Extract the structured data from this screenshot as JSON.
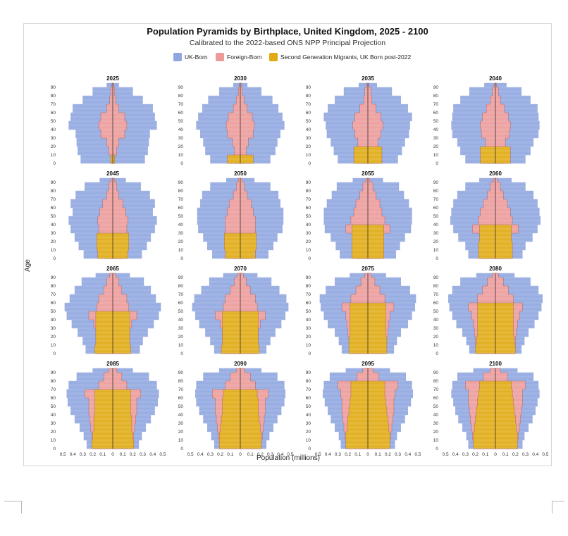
{
  "chart_data": {
    "type": "pyramid",
    "title": "Population Pyramids by Birthplace, United Kingdom, 2025 - 2100",
    "subtitle": "Calibrated to the 2022-based ONS NPP Principal Projection",
    "xlabel": "Population (millions)",
    "ylabel": "Age",
    "legend_position": "top",
    "series": [
      {
        "name": "UK-Born",
        "color": "#8fa6e0"
      },
      {
        "name": "Foreign-Born",
        "color": "#ec9a9a"
      },
      {
        "name": "Second Generation Migrants, UK Born post-2022",
        "color": "#e0aa12"
      }
    ],
    "x_ticks": [
      "0.5",
      "0.4",
      "0.3",
      "0.2",
      "0.1",
      "0",
      "0.1",
      "0.2",
      "0.3",
      "0.4",
      "0.5"
    ],
    "y_ticks": [
      "0",
      "10",
      "20",
      "30",
      "40",
      "50",
      "60",
      "70",
      "80",
      "90"
    ],
    "xlim": [
      -0.55,
      0.55
    ],
    "ylim": [
      0,
      95
    ],
    "ages": [
      0,
      10,
      20,
      30,
      40,
      50,
      60,
      70,
      80,
      90,
      95
    ],
    "panels": [
      {
        "year": "2025",
        "total": [
          0.32,
          0.35,
          0.36,
          0.37,
          0.44,
          0.42,
          0.4,
          0.3,
          0.2,
          0.06,
          0.02
        ],
        "foreign": [
          0.02,
          0.04,
          0.06,
          0.12,
          0.14,
          0.12,
          0.06,
          0.03,
          0.02,
          0.01,
          0.0
        ],
        "second": [
          0.02,
          0.0,
          0.0,
          0.0,
          0.0,
          0.0,
          0.0,
          0.0,
          0.0,
          0.0,
          0.0
        ]
      },
      {
        "year": "2030",
        "total": [
          0.3,
          0.35,
          0.37,
          0.4,
          0.44,
          0.42,
          0.38,
          0.32,
          0.21,
          0.07,
          0.02
        ],
        "foreign": [
          0.05,
          0.06,
          0.08,
          0.13,
          0.14,
          0.12,
          0.07,
          0.04,
          0.02,
          0.01,
          0.0
        ],
        "second": [
          0.13,
          0.0,
          0.0,
          0.0,
          0.0,
          0.0,
          0.0,
          0.0,
          0.0,
          0.0,
          0.0
        ]
      },
      {
        "year": "2035",
        "total": [
          0.3,
          0.34,
          0.37,
          0.41,
          0.42,
          0.44,
          0.4,
          0.33,
          0.24,
          0.09,
          0.02
        ],
        "foreign": [
          0.07,
          0.07,
          0.1,
          0.13,
          0.15,
          0.13,
          0.08,
          0.04,
          0.03,
          0.01,
          0.0
        ],
        "second": [
          0.14,
          0.14,
          0.0,
          0.0,
          0.0,
          0.0,
          0.0,
          0.0,
          0.0,
          0.0,
          0.0
        ]
      },
      {
        "year": "2040",
        "total": [
          0.3,
          0.35,
          0.38,
          0.43,
          0.44,
          0.43,
          0.42,
          0.35,
          0.26,
          0.11,
          0.03
        ],
        "foreign": [
          0.08,
          0.09,
          0.1,
          0.14,
          0.15,
          0.13,
          0.09,
          0.05,
          0.03,
          0.01,
          0.0
        ],
        "second": [
          0.15,
          0.15,
          0.0,
          0.0,
          0.0,
          0.0,
          0.0,
          0.0,
          0.0,
          0.0,
          0.0
        ]
      },
      {
        "year": "2045",
        "total": [
          0.29,
          0.34,
          0.38,
          0.42,
          0.44,
          0.4,
          0.42,
          0.37,
          0.28,
          0.13,
          0.04
        ],
        "foreign": [
          0.09,
          0.1,
          0.13,
          0.14,
          0.15,
          0.13,
          0.1,
          0.06,
          0.04,
          0.02,
          0.0
        ],
        "second": [
          0.15,
          0.16,
          0.16,
          0.0,
          0.0,
          0.0,
          0.0,
          0.0,
          0.0,
          0.0,
          0.0
        ]
      },
      {
        "year": "2050",
        "total": [
          0.28,
          0.33,
          0.37,
          0.42,
          0.43,
          0.43,
          0.4,
          0.38,
          0.3,
          0.14,
          0.04
        ],
        "foreign": [
          0.1,
          0.11,
          0.16,
          0.15,
          0.15,
          0.13,
          0.11,
          0.07,
          0.04,
          0.02,
          0.0
        ],
        "second": [
          0.15,
          0.16,
          0.16,
          0.0,
          0.0,
          0.0,
          0.0,
          0.0,
          0.0,
          0.0,
          0.0
        ]
      },
      {
        "year": "2055",
        "total": [
          0.28,
          0.32,
          0.37,
          0.43,
          0.44,
          0.44,
          0.41,
          0.36,
          0.31,
          0.15,
          0.05
        ],
        "foreign": [
          0.12,
          0.13,
          0.15,
          0.22,
          0.17,
          0.14,
          0.12,
          0.08,
          0.05,
          0.02,
          0.0
        ],
        "second": [
          0.16,
          0.16,
          0.16,
          0.16,
          0.0,
          0.0,
          0.0,
          0.0,
          0.0,
          0.0,
          0.0
        ]
      },
      {
        "year": "2060",
        "total": [
          0.27,
          0.3,
          0.37,
          0.42,
          0.45,
          0.44,
          0.42,
          0.38,
          0.3,
          0.16,
          0.05
        ],
        "foreign": [
          0.14,
          0.15,
          0.16,
          0.23,
          0.17,
          0.15,
          0.12,
          0.08,
          0.05,
          0.02,
          0.0
        ],
        "second": [
          0.17,
          0.17,
          0.16,
          0.16,
          0.0,
          0.0,
          0.0,
          0.0,
          0.0,
          0.0,
          0.0
        ]
      },
      {
        "year": "2065",
        "total": [
          0.27,
          0.3,
          0.35,
          0.41,
          0.46,
          0.48,
          0.43,
          0.38,
          0.31,
          0.17,
          0.06
        ],
        "foreign": [
          0.16,
          0.16,
          0.17,
          0.19,
          0.24,
          0.16,
          0.14,
          0.09,
          0.06,
          0.03,
          0.0
        ],
        "second": [
          0.18,
          0.17,
          0.17,
          0.17,
          0.17,
          0.0,
          0.0,
          0.0,
          0.0,
          0.0,
          0.0
        ]
      },
      {
        "year": "2070",
        "total": [
          0.26,
          0.3,
          0.35,
          0.41,
          0.45,
          0.48,
          0.46,
          0.39,
          0.31,
          0.17,
          0.07
        ],
        "foreign": [
          0.17,
          0.18,
          0.18,
          0.2,
          0.25,
          0.17,
          0.15,
          0.1,
          0.06,
          0.03,
          0.0
        ],
        "second": [
          0.19,
          0.18,
          0.18,
          0.18,
          0.18,
          0.0,
          0.0,
          0.0,
          0.0,
          0.0,
          0.0
        ]
      },
      {
        "year": "2075",
        "total": [
          0.26,
          0.29,
          0.33,
          0.4,
          0.44,
          0.47,
          0.48,
          0.42,
          0.33,
          0.18,
          0.07
        ],
        "foreign": [
          0.18,
          0.19,
          0.2,
          0.21,
          0.22,
          0.26,
          0.17,
          0.12,
          0.07,
          0.03,
          0.0
        ],
        "second": [
          0.19,
          0.19,
          0.18,
          0.18,
          0.18,
          0.18,
          0.0,
          0.0,
          0.0,
          0.0,
          0.0
        ]
      },
      {
        "year": "2080",
        "total": [
          0.26,
          0.29,
          0.33,
          0.39,
          0.43,
          0.46,
          0.47,
          0.43,
          0.35,
          0.19,
          0.08
        ],
        "foreign": [
          0.19,
          0.2,
          0.21,
          0.22,
          0.24,
          0.27,
          0.18,
          0.13,
          0.08,
          0.03,
          0.0
        ],
        "second": [
          0.2,
          0.19,
          0.18,
          0.18,
          0.18,
          0.18,
          0.0,
          0.0,
          0.0,
          0.0,
          0.0
        ]
      },
      {
        "year": "2085",
        "total": [
          0.26,
          0.29,
          0.33,
          0.38,
          0.42,
          0.45,
          0.46,
          0.44,
          0.36,
          0.2,
          0.08
        ],
        "foreign": [
          0.2,
          0.21,
          0.22,
          0.23,
          0.24,
          0.24,
          0.28,
          0.14,
          0.09,
          0.04,
          0.0
        ],
        "second": [
          0.21,
          0.2,
          0.19,
          0.19,
          0.18,
          0.18,
          0.18,
          0.0,
          0.0,
          0.0,
          0.0
        ]
      },
      {
        "year": "2090",
        "total": [
          0.26,
          0.29,
          0.33,
          0.37,
          0.41,
          0.44,
          0.45,
          0.44,
          0.37,
          0.21,
          0.08
        ],
        "foreign": [
          0.21,
          0.22,
          0.23,
          0.24,
          0.25,
          0.25,
          0.28,
          0.15,
          0.1,
          0.04,
          0.0
        ],
        "second": [
          0.21,
          0.21,
          0.2,
          0.19,
          0.18,
          0.18,
          0.17,
          0.0,
          0.0,
          0.0,
          0.0
        ]
      },
      {
        "year": "2095",
        "total": [
          0.27,
          0.29,
          0.33,
          0.37,
          0.4,
          0.43,
          0.45,
          0.44,
          0.38,
          0.22,
          0.09
        ],
        "foreign": [
          0.22,
          0.23,
          0.24,
          0.25,
          0.26,
          0.26,
          0.27,
          0.3,
          0.11,
          0.05,
          0.0
        ],
        "second": [
          0.22,
          0.22,
          0.21,
          0.2,
          0.19,
          0.18,
          0.17,
          0.17,
          0.0,
          0.0,
          0.0
        ]
      },
      {
        "year": "2100",
        "total": [
          0.27,
          0.29,
          0.33,
          0.37,
          0.4,
          0.42,
          0.44,
          0.43,
          0.38,
          0.22,
          0.09
        ],
        "foreign": [
          0.22,
          0.23,
          0.24,
          0.25,
          0.26,
          0.27,
          0.27,
          0.3,
          0.12,
          0.05,
          0.0
        ],
        "second": [
          0.22,
          0.22,
          0.21,
          0.2,
          0.19,
          0.18,
          0.17,
          0.16,
          0.0,
          0.0,
          0.0
        ]
      }
    ]
  }
}
